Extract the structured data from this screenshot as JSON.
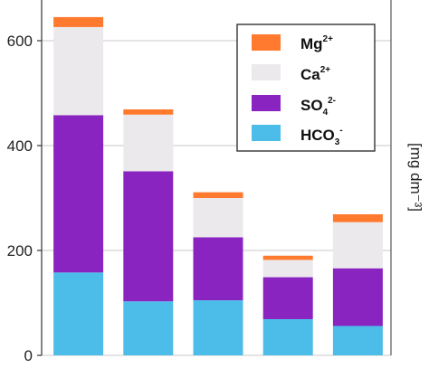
{
  "colors": {
    "Mg": "#ff7a2e",
    "Ca": "#ece9ec",
    "SO4": "#8a24c0",
    "HCO3": "#4bbde8",
    "grid": "#c9c9c9",
    "axis": "#333333"
  },
  "legend": {
    "mg_main": "Mg",
    "mg_sup": "2+",
    "ca_main": "Ca",
    "ca_sup": "2+",
    "so4_main": "SO",
    "so4_sub": "4",
    "so4_sup": "2-",
    "hco3_main": "HCO",
    "hco3_sub": "3",
    "hco3_sup": "-"
  },
  "chart_data": {
    "type": "bar",
    "stacked": true,
    "categories": [
      "",
      "",
      "",
      "",
      ""
    ],
    "series": [
      {
        "name": "HCO3-",
        "values": [
          158,
          103,
          105,
          69,
          56
        ]
      },
      {
        "name": "SO42-",
        "values": [
          300,
          248,
          120,
          80,
          110
        ]
      },
      {
        "name": "Ca2+",
        "values": [
          168,
          108,
          75,
          33,
          88
        ]
      },
      {
        "name": "Mg2+",
        "values": [
          19,
          10,
          11,
          8,
          15
        ]
      }
    ],
    "yticks": [
      "0",
      "200",
      "400",
      "600"
    ],
    "ylim": [
      0,
      670
    ],
    "ylabel": "[mg dm⁻³]",
    "grid": true,
    "legend_position": "top-right"
  }
}
